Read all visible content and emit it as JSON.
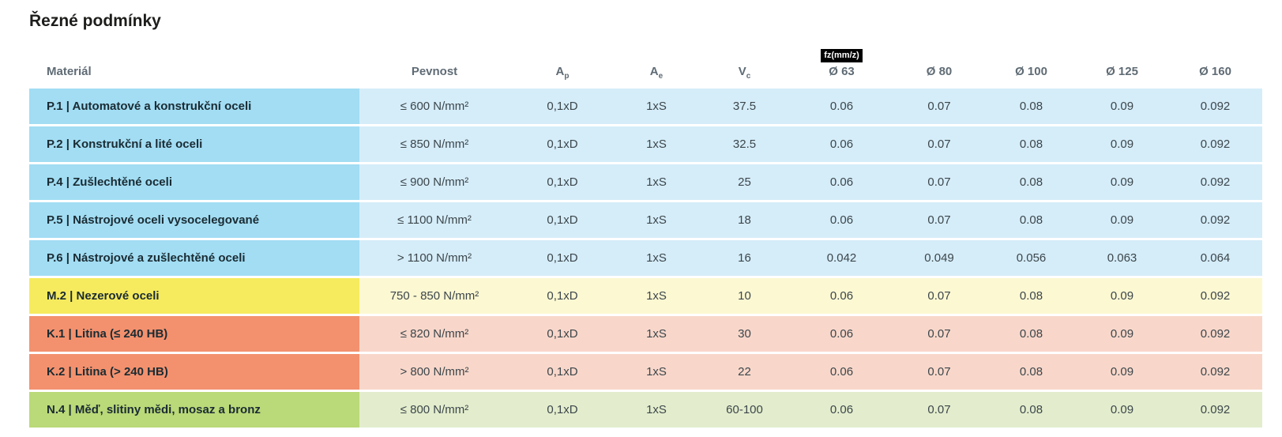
{
  "page_title": "Řezné podmínky",
  "palette": {
    "blue": {
      "label_bg": "#a2ddf3",
      "value_bg": "#d5edf9"
    },
    "yellow": {
      "label_bg": "#f6eb5e",
      "value_bg": "#fcf8d2"
    },
    "salmon": {
      "label_bg": "#f3916e",
      "value_bg": "#f8d7ca"
    },
    "green": {
      "label_bg": "#bad978",
      "value_bg": "#e3edcd"
    },
    "badge_bg": "#000000",
    "badge_text": "#ffffff",
    "header_text": "#5f6b74",
    "material_text": "#1a2b33",
    "value_text": "#3c464b"
  },
  "table": {
    "columns": {
      "material": "Materiál",
      "pevnost": "Pevnost",
      "ap_base": "A",
      "ap_sub": "p",
      "ae_base": "A",
      "ae_sub": "e",
      "vc_base": "V",
      "vc_sub": "c",
      "fz_badge": "fz(mm/z)",
      "d63": "Ø 63",
      "d80": "Ø 80",
      "d100": "Ø 100",
      "d125": "Ø 125",
      "d160": "Ø 160"
    },
    "rows": [
      {
        "color": "blue",
        "material": "P.1 | Automatové a konstrukční oceli",
        "pevnost": "≤ 600 N/mm²",
        "ap": "0,1xD",
        "ae": "1xS",
        "vc": "37.5",
        "fz": [
          "0.06",
          "0.07",
          "0.08",
          "0.09",
          "0.092"
        ]
      },
      {
        "color": "blue",
        "material": "P.2 | Konstrukční a lité oceli",
        "pevnost": "≤ 850 N/mm²",
        "ap": "0,1xD",
        "ae": "1xS",
        "vc": "32.5",
        "fz": [
          "0.06",
          "0.07",
          "0.08",
          "0.09",
          "0.092"
        ]
      },
      {
        "color": "blue",
        "material": "P.4 | Zušlechtěné oceli",
        "pevnost": "≤ 900 N/mm²",
        "ap": "0,1xD",
        "ae": "1xS",
        "vc": "25",
        "fz": [
          "0.06",
          "0.07",
          "0.08",
          "0.09",
          "0.092"
        ]
      },
      {
        "color": "blue",
        "material": "P.5 | Nástrojové oceli vysocelegované",
        "pevnost": "≤ 1100 N/mm²",
        "ap": "0,1xD",
        "ae": "1xS",
        "vc": "18",
        "fz": [
          "0.06",
          "0.07",
          "0.08",
          "0.09",
          "0.092"
        ]
      },
      {
        "color": "blue",
        "material": "P.6 | Nástrojové a zušlechtěné oceli",
        "pevnost": "> 1100 N/mm²",
        "ap": "0,1xD",
        "ae": "1xS",
        "vc": "16",
        "fz": [
          "0.042",
          "0.049",
          "0.056",
          "0.063",
          "0.064"
        ]
      },
      {
        "color": "yellow",
        "material": "M.2 | Nezerové oceli",
        "pevnost": "750 - 850 N/mm²",
        "ap": "0,1xD",
        "ae": "1xS",
        "vc": "10",
        "fz": [
          "0.06",
          "0.07",
          "0.08",
          "0.09",
          "0.092"
        ]
      },
      {
        "color": "salmon",
        "material": "K.1 | Litina (≤ 240 HB)",
        "pevnost": "≤ 820 N/mm²",
        "ap": "0,1xD",
        "ae": "1xS",
        "vc": "30",
        "fz": [
          "0.06",
          "0.07",
          "0.08",
          "0.09",
          "0.092"
        ]
      },
      {
        "color": "salmon",
        "material": "K.2 | Litina (> 240 HB)",
        "pevnost": "> 800 N/mm²",
        "ap": "0,1xD",
        "ae": "1xS",
        "vc": "22",
        "fz": [
          "0.06",
          "0.07",
          "0.08",
          "0.09",
          "0.092"
        ]
      },
      {
        "color": "green",
        "material": "N.4 | Měď, slitiny mědi, mosaz a bronz",
        "pevnost": "≤ 800 N/mm²",
        "ap": "0,1xD",
        "ae": "1xS",
        "vc": "60-100",
        "fz": [
          "0.06",
          "0.07",
          "0.08",
          "0.09",
          "0.092"
        ]
      }
    ]
  }
}
